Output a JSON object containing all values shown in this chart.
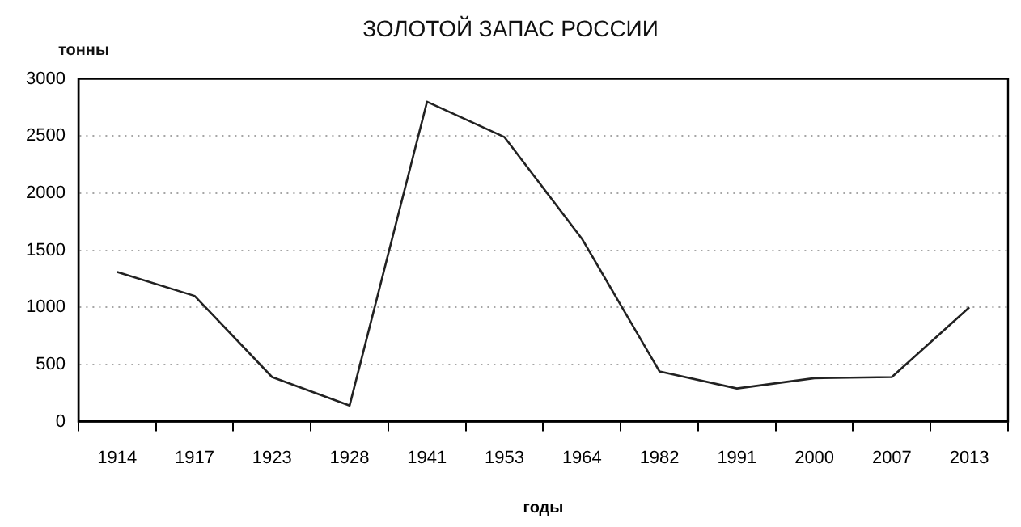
{
  "chart_data": {
    "type": "line",
    "title": "ЗОЛОТОЙ ЗАПАС РОССИИ",
    "xlabel": "годы",
    "ylabel": "тонны",
    "categories": [
      "1914",
      "1917",
      "1923",
      "1928",
      "1941",
      "1953",
      "1964",
      "1982",
      "1991",
      "2000",
      "2007",
      "2013"
    ],
    "series": [
      {
        "color": "#222222",
        "values": [
          1310,
          1100,
          390,
          140,
          2800,
          2490,
          1600,
          440,
          290,
          380,
          390,
          1000
        ]
      }
    ],
    "ylim": [
      0,
      3000
    ],
    "yticks": [
      0,
      500,
      1000,
      1500,
      2000,
      2500,
      3000
    ],
    "grid": "y",
    "legend": false,
    "marker": "none",
    "line_style": "solid"
  }
}
